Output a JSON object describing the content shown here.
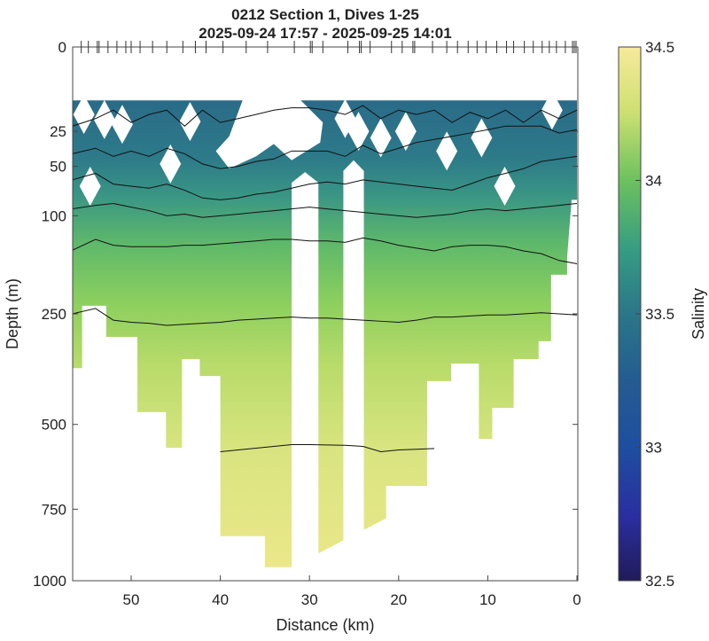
{
  "chart_data": {
    "type": "heatmap",
    "title": "0212 Section 1, Dives 1-25",
    "subtitle": "2025-09-24 17:57 - 2025-09-25 14:01",
    "xlabel": "Distance (km)",
    "ylabel": "Depth (m)",
    "xlim": [
      56.6,
      0
    ],
    "ylim": [
      0,
      1000
    ],
    "y_scale": "sqrt",
    "xticks": [
      "50",
      "40",
      "30",
      "20",
      "10",
      "0"
    ],
    "xtick_values": [
      50,
      40,
      30,
      20,
      10,
      0
    ],
    "yticks": [
      "0",
      "25",
      "50",
      "100",
      "250",
      "500",
      "750",
      "1000"
    ],
    "ytick_values": [
      0,
      25,
      50,
      100,
      250,
      500,
      750,
      1000
    ],
    "colorbar": {
      "label": "Salinity",
      "ticks": [
        "34.5",
        "34",
        "33.5",
        "33",
        "32.5"
      ],
      "tick_values": [
        34.5,
        34,
        33.5,
        33,
        32.5
      ],
      "range": [
        32.5,
        34.5
      ]
    },
    "dive_positions_km": [
      55.6,
      54.8,
      53.8,
      53.6,
      52.6,
      51.6,
      50.6,
      50.0,
      49.0,
      47.6,
      46.0,
      44.2,
      42.8,
      41.6,
      39.7,
      37.1,
      34.7,
      31.7,
      29.9,
      29.7,
      28.5,
      25.7,
      24.4,
      24.2,
      23.2,
      20.8,
      19.6,
      18.4,
      18.2,
      16.2,
      14.6,
      13.4,
      12.2,
      11.2,
      10.2,
      9.0,
      7.9,
      7.1,
      5.9,
      4.9,
      3.9,
      3.1,
      2.3,
      1.3,
      0.5,
      0.3,
      0.1
    ],
    "data_top_depth": 10,
    "coverage_bottom": [
      [
        56.6,
        362
      ],
      [
        55.5,
        362
      ],
      [
        55.5,
        235
      ],
      [
        52.8,
        235
      ],
      [
        52.8,
        295
      ],
      [
        49.3,
        295
      ],
      [
        49.3,
        468
      ],
      [
        46.1,
        468
      ],
      [
        46.1,
        564
      ],
      [
        44.3,
        564
      ],
      [
        44.3,
        342
      ],
      [
        42.3,
        342
      ],
      [
        42.3,
        380
      ],
      [
        40.0,
        380
      ],
      [
        40.0,
        840
      ],
      [
        35.0,
        840
      ],
      [
        35.0,
        950
      ],
      [
        32.0,
        950
      ],
      [
        32.0,
        950
      ],
      [
        21.4,
        780
      ],
      [
        21.4,
        676
      ],
      [
        16.8,
        676
      ],
      [
        16.8,
        392
      ],
      [
        14.1,
        392
      ],
      [
        14.1,
        352
      ],
      [
        11.0,
        352
      ],
      [
        11.0,
        539
      ],
      [
        9.5,
        539
      ],
      [
        9.5,
        457
      ],
      [
        7.1,
        457
      ],
      [
        7.1,
        342
      ],
      [
        4.3,
        342
      ],
      [
        4.3,
        304
      ],
      [
        2.9,
        304
      ],
      [
        2.9,
        182
      ],
      [
        1.1,
        182
      ],
      [
        1.1,
        155
      ],
      [
        0.6,
        82
      ],
      [
        0,
        82
      ]
    ],
    "gaps": [
      {
        "from_km": 32.0,
        "to_km": 29.0,
        "top_depth": 55,
        "bottom_depth": 1000
      },
      {
        "from_km": 26.2,
        "to_km": 23.9,
        "top_depth": 45,
        "bottom_depth": 1000
      }
    ],
    "holes": [
      [
        55.3,
        16
      ],
      [
        53.0,
        18.5
      ],
      [
        51.0,
        21
      ],
      [
        43.4,
        19.5
      ],
      [
        45.6,
        48
      ],
      [
        54.6,
        68
      ],
      [
        19.2,
        25
      ],
      [
        14.6,
        38
      ],
      [
        10.7,
        29
      ],
      [
        8.1,
        68
      ],
      [
        2.8,
        14
      ],
      [
        22.0,
        29
      ],
      [
        24.5,
        25
      ],
      [
        26.0,
        18
      ]
    ],
    "contour_km": [
      56.6,
      54,
      52,
      50,
      48,
      46,
      44,
      42,
      40,
      38,
      36,
      34,
      32,
      30,
      28,
      26,
      24,
      22,
      20,
      18,
      16,
      14,
      12,
      10,
      8,
      6,
      4,
      2,
      0
    ],
    "contours": [
      {
        "depth": [
          22,
          18,
          14,
          20,
          16,
          14,
          22,
          14,
          20,
          18,
          16,
          14,
          13,
          13,
          14,
          16,
          12,
          18,
          14,
          16,
          14,
          20,
          15,
          18,
          14,
          20,
          14,
          18,
          14
        ]
      },
      {
        "depth": [
          40,
          36,
          42,
          38,
          42,
          36,
          40,
          48,
          52,
          50,
          46,
          44,
          38,
          38,
          38,
          42,
          34,
          40,
          36,
          32,
          30,
          28,
          26,
          24,
          22,
          22,
          22,
          26,
          24
        ]
      },
      {
        "depth": [
          62,
          56,
          66,
          68,
          70,
          66,
          72,
          80,
          82,
          80,
          76,
          74,
          70,
          66,
          64,
          66,
          62,
          64,
          66,
          68,
          70,
          72,
          66,
          60,
          56,
          52,
          46,
          44,
          42
        ]
      },
      {
        "depth": [
          92,
          88,
          86,
          90,
          94,
          100,
          98,
          102,
          100,
          98,
          96,
          94,
          92,
          90,
          92,
          94,
          96,
          98,
          100,
          102,
          100,
          98,
          94,
          92,
          94,
          92,
          90,
          88,
          86
        ]
      },
      {
        "depth": [
          145,
          130,
          138,
          140,
          140,
          140,
          138,
          138,
          136,
          134,
          132,
          130,
          130,
          132,
          132,
          134,
          128,
          132,
          138,
          142,
          146,
          140,
          138,
          138,
          140,
          146,
          150,
          160,
          165
        ]
      },
      {
        "depth": [
          250,
          240,
          262,
          266,
          268,
          272,
          270,
          268,
          266,
          262,
          260,
          258,
          256,
          258,
          258,
          260,
          262,
          264,
          266,
          262,
          256,
          256,
          254,
          252,
          252,
          250,
          248,
          250,
          252
        ]
      },
      {
        "depth": [
          null,
          null,
          null,
          null,
          null,
          null,
          null,
          null,
          575,
          570,
          565,
          560,
          555,
          555,
          556,
          557,
          560,
          575,
          570,
          568,
          566,
          null,
          null,
          null,
          null,
          null,
          null,
          null,
          null
        ]
      }
    ]
  }
}
